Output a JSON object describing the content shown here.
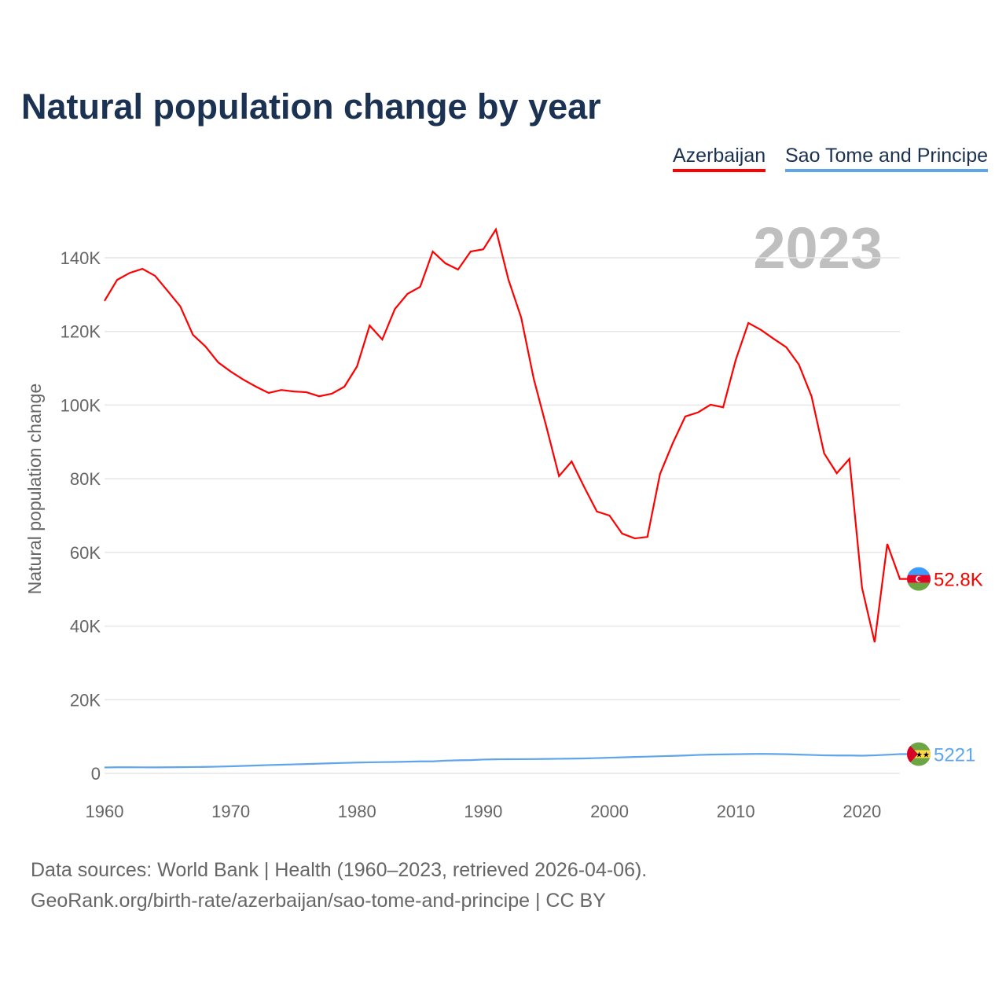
{
  "chart_data": {
    "type": "line",
    "title": "Natural population change by year",
    "ylabel": "Natural population change",
    "xlabel": "",
    "year_label": "2023",
    "xlim": [
      1960,
      2023
    ],
    "ylim": [
      0,
      150000
    ],
    "yticks": [
      0,
      20000,
      40000,
      60000,
      80000,
      100000,
      120000,
      140000
    ],
    "ytick_labels": [
      "0",
      "20K",
      "40K",
      "60K",
      "80K",
      "100K",
      "120K",
      "140K"
    ],
    "xticks": [
      1960,
      1970,
      1980,
      1990,
      2000,
      2010,
      2020
    ],
    "xtick_labels": [
      "1960",
      "1970",
      "1980",
      "1990",
      "2000",
      "2010",
      "2020"
    ],
    "grid": true,
    "legend_position": "top-right",
    "x_start": 1960,
    "series": [
      {
        "name": "Azerbaijan",
        "color": "#ff0000",
        "end_label": "52.8K",
        "flag": "azerbaijan-flag",
        "values": [
          128300,
          134000,
          135900,
          137000,
          135100,
          131000,
          126800,
          119100,
          115900,
          111600,
          109100,
          106900,
          105000,
          103300,
          104100,
          103700,
          103500,
          102400,
          103100,
          105000,
          110500,
          121600,
          117800,
          126100,
          130200,
          132100,
          141700,
          138500,
          136800,
          141700,
          142300,
          147700,
          134000,
          123800,
          107100,
          94100,
          80700,
          84700,
          77700,
          71100,
          70000,
          65100,
          63800,
          64200,
          81300,
          89600,
          96900,
          98000,
          100100,
          99400,
          112300,
          122300,
          120400,
          118000,
          115700,
          111000,
          102400,
          86900,
          81500,
          85400,
          50400,
          35600,
          62300,
          52800
        ]
      },
      {
        "name": "Sao Tome and Principe",
        "color": "#5ea5ea",
        "end_label": "5221",
        "flag": "sao-tome-flag",
        "values": [
          1600,
          1650,
          1650,
          1640,
          1630,
          1650,
          1680,
          1720,
          1760,
          1830,
          1920,
          2030,
          2140,
          2250,
          2340,
          2440,
          2540,
          2640,
          2740,
          2840,
          2930,
          3000,
          3050,
          3100,
          3180,
          3250,
          3260,
          3450,
          3550,
          3600,
          3750,
          3820,
          3840,
          3860,
          3880,
          3920,
          3960,
          4000,
          4050,
          4150,
          4250,
          4350,
          4450,
          4550,
          4650,
          4750,
          4850,
          5000,
          5100,
          5150,
          5200,
          5250,
          5300,
          5250,
          5200,
          5100,
          5000,
          4900,
          4850,
          4850,
          4800,
          4900,
          5050,
          5221
        ]
      }
    ]
  },
  "footer": {
    "line1": "Data sources: World Bank | Health (1960–2023, retrieved 2026-04-06).",
    "line2": "GeoRank.org/birth-rate/azerbaijan/sao-tome-and-principe | CC BY"
  }
}
